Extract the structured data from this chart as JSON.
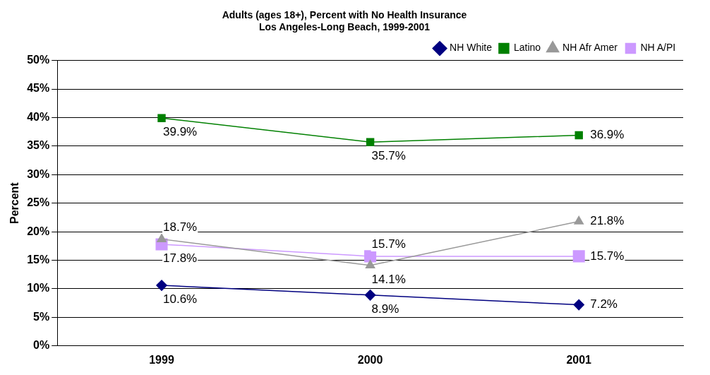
{
  "chart_data": {
    "type": "line",
    "title": "Adults (ages 18+), Percent with No Health Insurance",
    "subtitle": "Los Angeles-Long Beach, 1999-2001",
    "ylabel": "Percent",
    "categories": [
      "1999",
      "2000",
      "2001"
    ],
    "series": [
      {
        "name": "NH White",
        "color": "#000080",
        "marker": "diamond",
        "values": [
          10.6,
          8.9,
          7.2
        ],
        "value_labels": [
          "10.6%",
          "8.9%",
          "7.2%"
        ]
      },
      {
        "name": "Latino",
        "color": "#008000",
        "marker": "square",
        "values": [
          39.9,
          35.7,
          36.9
        ],
        "value_labels": [
          "39.9%",
          "35.7%",
          "36.9%"
        ]
      },
      {
        "name": "NH Afr Amer",
        "color": "#999999",
        "marker": "triangle",
        "values": [
          18.7,
          14.1,
          21.8
        ],
        "value_labels": [
          "18.7%",
          "14.1%",
          "21.8%"
        ]
      },
      {
        "name": "NH A/PI",
        "color": "#cc99ff",
        "marker": "square",
        "values": [
          17.8,
          15.7,
          15.7
        ],
        "value_labels": [
          "17.8%",
          "15.7%",
          "15.7%"
        ]
      }
    ],
    "ylim": [
      0,
      50
    ],
    "yticks": [
      {
        "value": 0,
        "label": "0%"
      },
      {
        "value": 5,
        "label": "5%"
      },
      {
        "value": 10,
        "label": "10%"
      },
      {
        "value": 15,
        "label": "15%"
      },
      {
        "value": 20,
        "label": "20%"
      },
      {
        "value": 25,
        "label": "25%"
      },
      {
        "value": 30,
        "label": "30%"
      },
      {
        "value": 35,
        "label": "35%"
      },
      {
        "value": 40,
        "label": "40%"
      },
      {
        "value": 45,
        "label": "45%"
      },
      {
        "value": 50,
        "label": "50%"
      }
    ],
    "grid": "y",
    "legend": "top right",
    "line_style": "solid"
  }
}
